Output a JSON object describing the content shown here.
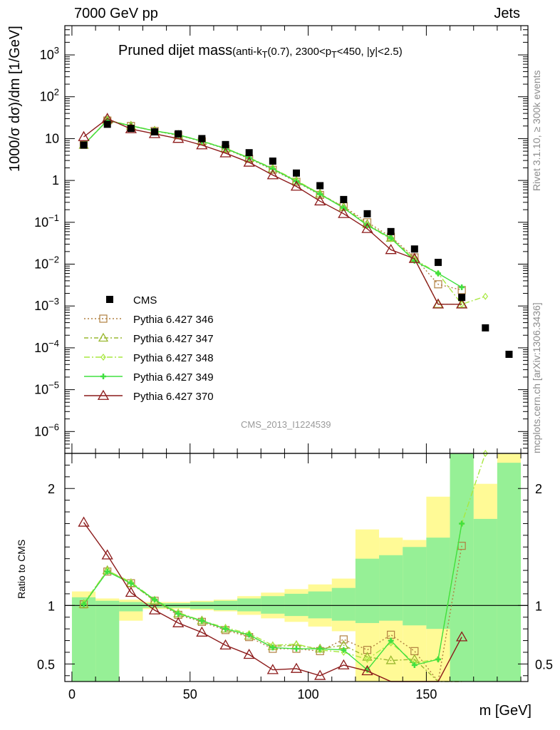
{
  "header": {
    "left": "7000 GeV pp",
    "right": "Jets"
  },
  "side_text": {
    "top": "Rivet 3.1.10, ≥ 300k events",
    "bottom": "mcplots.cern.ch [arXiv:1306.3436]"
  },
  "watermark": "CMS_2013_I1224539",
  "chart_data": {
    "type": "line",
    "title": "Pruned dijet mass",
    "subtitle_parts": [
      "(anti-k",
      "T",
      "(0.7), 2300<p",
      "T",
      "<450, |y|<2.5)"
    ],
    "ylabel": "1000/σ dσ)/dm [1/GeV]",
    "ratio_ylabel": "Ratio to CMS",
    "xlabel": "m [GeV]",
    "xlim": [
      -3,
      193
    ],
    "ylim_log": [
      3e-07,
      5000
    ],
    "ratio_ylim": [
      0.35,
      2.3
    ],
    "yscale": "log",
    "x_ticks": [
      0,
      50,
      100,
      150
    ],
    "y_tick_labels": [
      {
        "exp": 3,
        "label": "10",
        "sup": "3"
      },
      {
        "exp": 2,
        "label": "10",
        "sup": "2"
      },
      {
        "exp": 1,
        "label": "10",
        "sup": ""
      },
      {
        "exp": 0,
        "label": "1",
        "sup": ""
      },
      {
        "exp": -1,
        "label": "10",
        "sup": "−1"
      },
      {
        "exp": -2,
        "label": "10",
        "sup": "−2"
      },
      {
        "exp": -3,
        "label": "10",
        "sup": "−3"
      },
      {
        "exp": -4,
        "label": "10",
        "sup": "−4"
      },
      {
        "exp": -5,
        "label": "10",
        "sup": "−5"
      },
      {
        "exp": -6,
        "label": "10",
        "sup": "−6"
      }
    ],
    "ratio_ticks": [
      0.5,
      1,
      2
    ],
    "bin_edges": [
      0,
      10,
      20,
      30,
      40,
      50,
      60,
      70,
      80,
      90,
      100,
      110,
      120,
      130,
      140,
      150,
      160,
      170,
      180,
      190
    ],
    "legend": {
      "placement": "lower-left"
    },
    "data": {
      "name": "CMS",
      "x": [
        5,
        15,
        25,
        35,
        45,
        55,
        65,
        75,
        85,
        95,
        105,
        115,
        125,
        135,
        145,
        155,
        165,
        175,
        185
      ],
      "y": [
        7.0,
        22.0,
        17.5,
        14.5,
        13.0,
        10.0,
        7.2,
        4.6,
        2.9,
        1.5,
        0.75,
        0.35,
        0.16,
        0.06,
        0.023,
        0.011,
        0.0016,
        0.0003,
        7e-05
      ],
      "band_yellow": [
        [
          0.9,
          1.12
        ],
        [
          0.35,
          1.06
        ],
        [
          0.87,
          1.05
        ],
        [
          0.97,
          1.03
        ],
        [
          0.97,
          1.03
        ],
        [
          0.96,
          1.04
        ],
        [
          0.95,
          1.05
        ],
        [
          0.92,
          1.08
        ],
        [
          0.89,
          1.11
        ],
        [
          0.86,
          1.14
        ],
        [
          0.82,
          1.18
        ],
        [
          0.78,
          1.23
        ],
        [
          0.35,
          1.65
        ],
        [
          0.35,
          1.58
        ],
        [
          0.35,
          1.56
        ],
        [
          0.35,
          1.93
        ],
        [
          0.35,
          2.3
        ],
        [
          0.4,
          2.04
        ],
        [
          0.35,
          2.3
        ]
      ],
      "band_green": [
        [
          0.35,
          1.07
        ],
        [
          0.35,
          1.04
        ],
        [
          0.95,
          1.03
        ],
        [
          0.98,
          1.02
        ],
        [
          0.98,
          1.02
        ],
        [
          0.97,
          1.03
        ],
        [
          0.96,
          1.04
        ],
        [
          0.95,
          1.06
        ],
        [
          0.93,
          1.08
        ],
        [
          0.91,
          1.1
        ],
        [
          0.89,
          1.12
        ],
        [
          0.87,
          1.15
        ],
        [
          0.85,
          1.4
        ],
        [
          0.87,
          1.43
        ],
        [
          0.83,
          1.5
        ],
        [
          0.8,
          1.58
        ],
        [
          0.35,
          2.3
        ],
        [
          0.35,
          1.74
        ],
        [
          0.35,
          2.22
        ]
      ]
    },
    "series": [
      {
        "name": "Pythia 6.427 346",
        "color": "#b08040",
        "marker": "square",
        "dash": "2,3",
        "x": [
          5,
          15,
          25,
          35,
          45,
          55,
          65,
          75,
          85,
          95,
          105,
          115,
          125,
          135,
          145,
          155,
          165
        ],
        "y": [
          7.1,
          27.0,
          20.0,
          15.2,
          12.0,
          8.6,
          5.7,
          3.3,
          1.8,
          0.93,
          0.45,
          0.24,
          0.1,
          0.045,
          0.0145,
          0.0033,
          0.0024
        ],
        "ratio": [
          1.01,
          1.29,
          1.19,
          1.04,
          0.92,
          0.86,
          0.79,
          0.73,
          0.63,
          0.63,
          0.61,
          0.71,
          0.62,
          0.75,
          0.61,
          null,
          1.51
        ]
      },
      {
        "name": "Pythia 6.427 347",
        "color": "#9ab830",
        "marker": "triangle",
        "dash": "6,3,2,3",
        "x": [
          5,
          15,
          25,
          35,
          45,
          55,
          65,
          75,
          85,
          95,
          105,
          115,
          125,
          135,
          145,
          155,
          165
        ],
        "y": [
          7.0,
          27.5,
          20.2,
          15.3,
          12.2,
          8.7,
          5.8,
          3.4,
          1.9,
          0.98,
          0.48,
          0.23,
          0.09,
          0.042,
          0.0135,
          0.0011,
          0.0011
        ],
        "ratio": [
          1.01,
          1.3,
          1.19,
          1.04,
          0.93,
          0.87,
          0.8,
          0.74,
          0.65,
          0.66,
          0.63,
          0.66,
          0.56,
          0.53,
          0.54,
          null,
          null
        ]
      },
      {
        "name": "Pythia 6.427 348",
        "color": "#a8e840",
        "marker": "diamond",
        "dash": "8,3,2,3",
        "x": [
          5,
          15,
          25,
          35,
          45,
          55,
          65,
          75,
          85,
          95,
          105,
          115,
          125,
          135,
          145,
          155,
          165,
          175
        ],
        "y": [
          7.2,
          27.5,
          20.5,
          15.4,
          12.4,
          8.8,
          5.9,
          3.5,
          1.95,
          1.0,
          0.48,
          0.22,
          0.085,
          0.04,
          0.013,
          0.006,
          0.0011,
          0.0017
        ],
        "ratio": [
          1.02,
          1.3,
          1.2,
          1.05,
          0.94,
          0.87,
          0.81,
          0.76,
          0.66,
          0.67,
          0.62,
          0.6,
          0.54,
          0.68,
          0.51,
          0.54,
          1.7,
          2.3
        ]
      },
      {
        "name": "Pythia 6.427 349",
        "color": "#40e040",
        "marker": "plus",
        "dash": "",
        "x": [
          5,
          15,
          25,
          35,
          45,
          55,
          65,
          75,
          85,
          95,
          105,
          115,
          125,
          135,
          145,
          155,
          165
        ],
        "y": [
          7.1,
          27.2,
          20.3,
          15.3,
          12.3,
          8.7,
          5.8,
          3.45,
          1.9,
          0.95,
          0.47,
          0.22,
          0.085,
          0.042,
          0.012,
          0.006,
          0.0028
        ],
        "ratio": [
          1.01,
          1.29,
          1.19,
          1.05,
          0.93,
          0.87,
          0.8,
          0.75,
          0.64,
          0.63,
          0.63,
          0.62,
          0.45,
          0.7,
          0.49,
          0.54,
          1.7
        ]
      },
      {
        "name": "Pythia 6.427 370",
        "color": "#8c1a1a",
        "marker": "triangle-open",
        "dash": "",
        "x": [
          5,
          15,
          25,
          35,
          45,
          55,
          65,
          75,
          85,
          95,
          105,
          115,
          125,
          135,
          145,
          155,
          165
        ],
        "y": [
          11.0,
          30.0,
          17.0,
          13.0,
          10.0,
          7.0,
          4.5,
          2.7,
          1.35,
          0.72,
          0.32,
          0.16,
          0.07,
          0.022,
          0.0135,
          0.0011,
          0.0011
        ],
        "ratio": [
          1.71,
          1.43,
          1.11,
          0.96,
          0.85,
          0.77,
          0.66,
          0.58,
          0.45,
          0.46,
          0.4,
          0.49,
          0.44,
          null,
          null,
          null,
          0.73
        ]
      }
    ]
  }
}
